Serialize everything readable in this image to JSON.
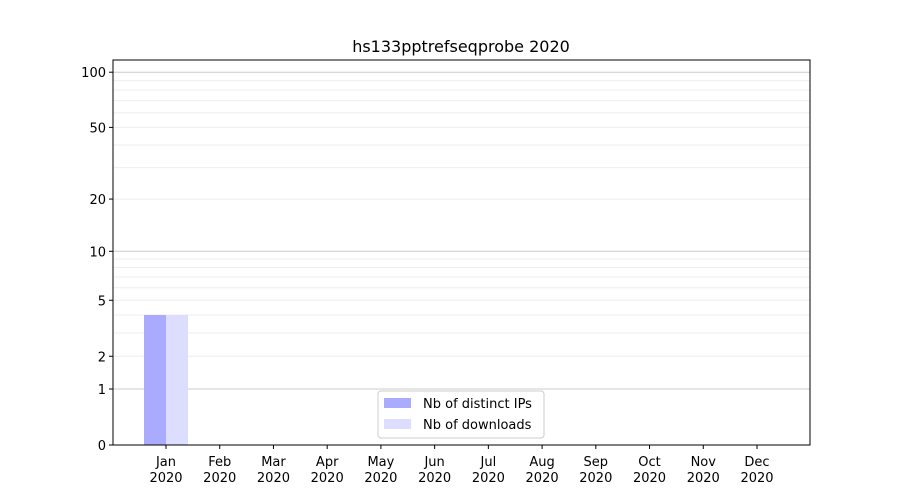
{
  "chart_data": {
    "type": "bar",
    "title": "hs133pptrefseqprobe 2020",
    "xlabel": "",
    "ylabel": "",
    "yscale": "symlog (log of 1+y)",
    "ylim": [
      0,
      116
    ],
    "yticks": [
      0,
      1,
      2,
      5,
      10,
      20,
      50,
      100
    ],
    "categories": [
      "Jan\n2020",
      "Feb\n2020",
      "Mar\n2020",
      "Apr\n2020",
      "May\n2020",
      "Jun\n2020",
      "Jul\n2020",
      "Aug\n2020",
      "Sep\n2020",
      "Oct\n2020",
      "Nov\n2020",
      "Dec\n2020"
    ],
    "series": [
      {
        "name": "Nb of distinct IPs",
        "color": "#aaaaff",
        "values": [
          4,
          0,
          0,
          0,
          0,
          0,
          0,
          0,
          0,
          0,
          0,
          0
        ]
      },
      {
        "name": "Nb of downloads",
        "color": "#ddddff",
        "values": [
          4,
          0,
          0,
          0,
          0,
          0,
          0,
          0,
          0,
          0,
          0,
          0
        ]
      }
    ],
    "grid": true,
    "legend": "bottom-center"
  }
}
